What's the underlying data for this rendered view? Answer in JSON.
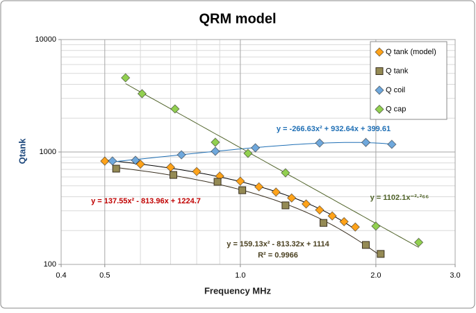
{
  "chart_data": {
    "type": "scatter",
    "title": "QRM model",
    "x_label": "Frequency MHz",
    "y_label": "Qtank",
    "log_x": true,
    "log_y": true,
    "grid": true,
    "legend": "top-right",
    "xlim": [
      0.4,
      3.0
    ],
    "xticks": [
      {
        "value": 0.4,
        "label": "0.4"
      },
      {
        "value": 0.5,
        "label": "0.5"
      },
      {
        "value": 1.0,
        "label": "1.0"
      },
      {
        "value": 2.0,
        "label": "2.0"
      },
      {
        "value": 3.0,
        "label": "3.0"
      }
    ],
    "ylim": [
      100,
      10000
    ],
    "yticks": [
      100,
      1000,
      10000
    ],
    "series": [
      {
        "name": "Q tank (model)",
        "color": "#ffa31a",
        "marker": "diamond",
        "trendline": "poly2",
        "trendline_color": "#000000",
        "x": [
          0.5,
          0.6,
          0.7,
          0.8,
          0.9,
          1.0,
          1.1,
          1.2,
          1.3,
          1.4,
          1.5,
          1.6,
          1.7,
          1.8
        ],
        "values": [
          830,
          780,
          730,
          670,
          610,
          550,
          490,
          440,
          390,
          345,
          305,
          270,
          240,
          215
        ]
      },
      {
        "name": "Q tank",
        "color": "#948a54",
        "marker": "square",
        "trendline": "poly2",
        "trendline_color": "#3a3020",
        "x": [
          0.53,
          0.71,
          0.89,
          1.01,
          1.26,
          1.53,
          1.9,
          2.05
        ],
        "values": [
          711,
          625,
          543,
          457,
          335,
          234,
          149,
          124
        ]
      },
      {
        "name": "Q coil",
        "color": "#6fa8dc",
        "marker": "diamond",
        "trendline": "poly2",
        "trendline_color": "#1f6fb5",
        "x": [
          0.52,
          0.585,
          0.74,
          0.88,
          1.08,
          1.5,
          1.9,
          2.17
        ],
        "values": [
          832,
          843,
          944,
          1014,
          1089,
          1202,
          1216,
          1170
        ]
      },
      {
        "name": "Q cap",
        "color": "#92d050",
        "marker": "diamond",
        "trendline": "power",
        "trendline_color": "#4f6228",
        "x": [
          0.556,
          0.605,
          0.716,
          0.88,
          1.04,
          1.26,
          2.0,
          2.49
        ],
        "values": [
          4571,
          3300,
          2415,
          1220,
          972,
          653,
          219,
          157
        ]
      }
    ],
    "annotations": [
      {
        "text": "y = -266.63x² + 932.64x + 399.61",
        "color": "#1f6fb5"
      },
      {
        "text": "y = 137.55x² - 813.96x + 1224.7",
        "color": "#c00000"
      },
      {
        "text": "y = 159.13x² - 813.32x + 1114",
        "color": "#4a4020"
      },
      {
        "text": "R² = 0.9966",
        "color": "#4a4020"
      },
      {
        "text": "y = 1102.1x⁻²·²⁶⁶",
        "color": "#4f6228"
      }
    ]
  }
}
